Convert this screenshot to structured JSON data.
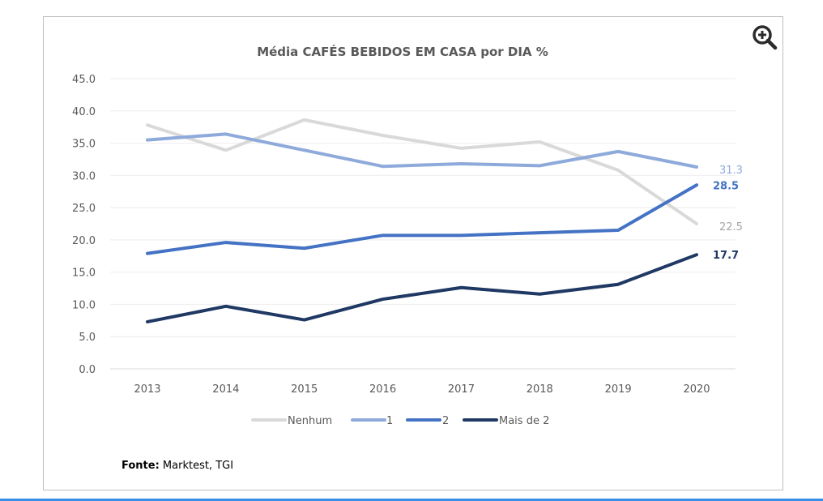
{
  "zoom_button": {
    "icon": "zoom-in-icon"
  },
  "chart_data": {
    "type": "line",
    "title": "Média CAFÉS BEBIDOS EM CASA por DIA %",
    "xlabel": "",
    "ylabel": "",
    "categories": [
      "2013",
      "2014",
      "2015",
      "2016",
      "2017",
      "2018",
      "2019",
      "2020"
    ],
    "ylim": [
      0,
      45
    ],
    "yticks": [
      0,
      5,
      10,
      15,
      20,
      25,
      30,
      35,
      40,
      45
    ],
    "ytick_labels": [
      "0.0",
      "5.0",
      "10.0",
      "15.0",
      "20.0",
      "25.0",
      "30.0",
      "35.0",
      "40.0",
      "45.0"
    ],
    "grid": true,
    "legend_position": "bottom",
    "series": [
      {
        "name": "Nenhum",
        "color": "#d9d9d9",
        "label_color": "#a6a6a6",
        "values": [
          37.8,
          33.9,
          38.6,
          36.2,
          34.2,
          35.2,
          30.8,
          22.5
        ],
        "end_label": "22.5",
        "end_label_bold": false
      },
      {
        "name": "1",
        "color": "#8eaadb",
        "label_color": "#8eaadb",
        "values": [
          35.5,
          36.4,
          33.9,
          31.4,
          31.8,
          31.5,
          33.7,
          31.3
        ],
        "end_label": "31.3",
        "end_label_bold": false
      },
      {
        "name": "2",
        "color": "#4472c4",
        "label_color": "#4472c4",
        "values": [
          17.9,
          19.6,
          18.7,
          20.7,
          20.7,
          21.1,
          21.5,
          28.5
        ],
        "end_label": "28.5",
        "end_label_bold": true
      },
      {
        "name": "Mais de 2",
        "color": "#1f3864",
        "label_color": "#1f3864",
        "values": [
          7.3,
          9.7,
          7.6,
          10.8,
          12.6,
          11.6,
          13.1,
          17.7
        ],
        "end_label": "17.7",
        "end_label_bold": true
      }
    ],
    "source_label": "Fonte:",
    "source_text": " Marktest, TGI"
  }
}
